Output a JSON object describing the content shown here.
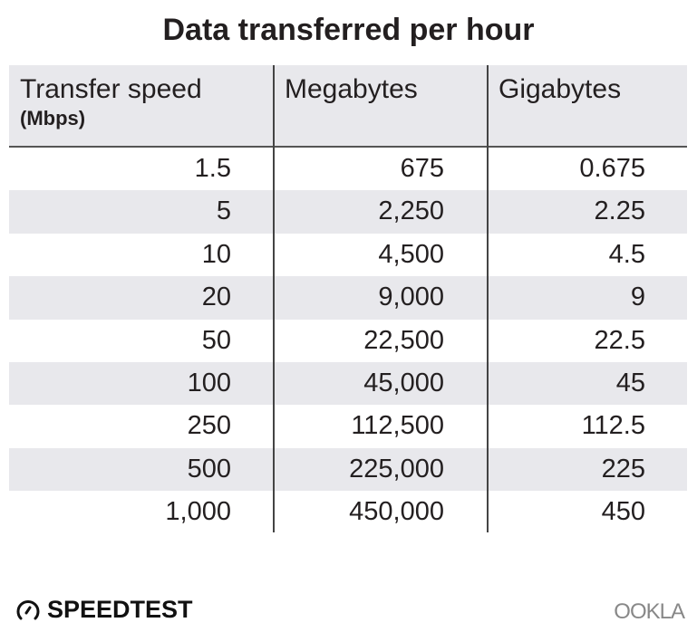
{
  "title": "Data transferred per hour",
  "chart_data": {
    "type": "table",
    "title": "Data transferred per hour",
    "columns": [
      {
        "label": "Transfer speed",
        "sublabel": "(Mbps)"
      },
      {
        "label": "Megabytes"
      },
      {
        "label": "Gigabytes"
      }
    ],
    "rows": [
      [
        "1.5",
        "675",
        "0.675"
      ],
      [
        "5",
        "2,250",
        "2.25"
      ],
      [
        "10",
        "4,500",
        "4.5"
      ],
      [
        "20",
        "9,000",
        "9"
      ],
      [
        "50",
        "22,500",
        "22.5"
      ],
      [
        "100",
        "45,000",
        "45"
      ],
      [
        "250",
        "112,500",
        "112.5"
      ],
      [
        "500",
        "225,000",
        "225"
      ],
      [
        "1,000",
        "450,000",
        "450"
      ]
    ]
  },
  "footer": {
    "left_logo": "SPEEDTEST",
    "right_logo": "OOKLA"
  },
  "colors": {
    "header_bg": "#e8e8ec",
    "stripe": "#e8e8ec",
    "text": "#231f20"
  }
}
